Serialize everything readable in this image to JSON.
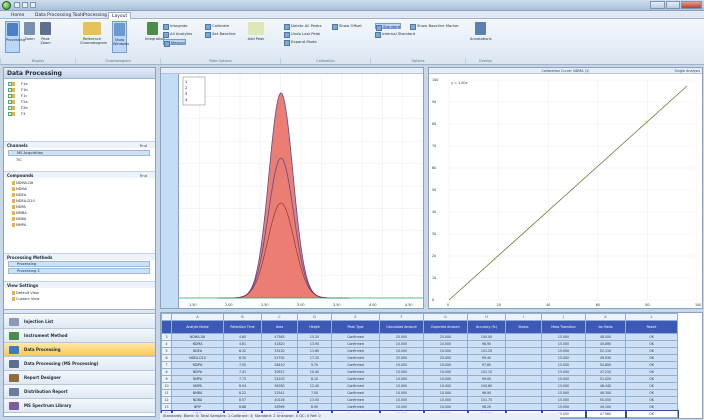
{
  "menu": {
    "tabs": [
      "Home",
      "Data Processing Tools",
      "Processing",
      "Layout"
    ],
    "active_index": 2
  },
  "ribbon": {
    "big_buttons": [
      "Processing",
      "Zoom",
      "Peak Zoom",
      "Reference Chromatogram",
      "Show Windows",
      "Integration"
    ],
    "small_buttons": [
      "Integrate",
      "All Analytes",
      "Manual",
      "Calibrate",
      "Set Baseline",
      "Add Peak",
      "Delete All Peaks",
      "Undo Last Peak",
      "Expand Mode",
      "Show Offset",
      "Standard",
      "Internal Standard",
      "Show Baseline Marker",
      "Annotations"
    ],
    "group_labels": [
      "Display",
      "Chromatogram",
      "Peak Options",
      "Calibration",
      "Options",
      "Overlay"
    ]
  },
  "nav": {
    "title": "Data Processing",
    "files": [
      "F1a",
      "F1b",
      "F1c",
      "F2a",
      "F2b",
      "F3"
    ],
    "sections": {
      "channels": {
        "label": "Channels",
        "tool": "Find",
        "items": [
          "MS Acquisition",
          "TIC"
        ]
      },
      "compounds": {
        "label": "Compounds",
        "tool": "Find",
        "items": [
          "NDMA-D6",
          "NDMA",
          "NDEA",
          "NDEA-D10",
          "NDPA",
          "NMBA",
          "NDBA",
          "NMPA"
        ]
      },
      "methods": {
        "label": "Processing Methods",
        "items": [
          "Processing",
          "Processing 2"
        ]
      },
      "viewsettings": {
        "label": "View Settings",
        "items": [
          "Default View",
          "Custom View"
        ]
      }
    },
    "buttons": [
      "Injection List",
      "Instrument Method",
      "Data Processing",
      "Data Processing (MS Processing)",
      "Report Designer",
      "Distribution Report",
      "MS Spectrum Library"
    ],
    "active_button": 2
  },
  "chromatogram": {
    "legend": [
      "1",
      "2",
      "3",
      "4"
    ],
    "x_ticks": [
      "1.50",
      "2.00",
      "2.50",
      "3.00",
      "3.50",
      "4.00",
      "4.50"
    ],
    "peak_color": "#e8665a"
  },
  "calibration": {
    "title": "Calibration Curve: NDMA (1)",
    "right_label": "Single Analysis",
    "equation": "y = 1.00x",
    "y_ticks": [
      "100",
      "90",
      "80",
      "70",
      "60",
      "50",
      "40",
      "30",
      "20",
      "10",
      "0"
    ],
    "x_ticks": [
      "0",
      "20",
      "40",
      "60",
      "80",
      "100"
    ],
    "line_color": "#6b7a3a"
  },
  "table": {
    "col_letters": [
      "",
      "A",
      "B",
      "C",
      "D",
      "E",
      "F",
      "G",
      "H",
      "I",
      "J",
      "K",
      "L"
    ],
    "headers": [
      "",
      "Analyte Name",
      "Retention Time",
      "Area",
      "Height",
      "Peak Type",
      "Calculated Amount",
      "Expected Amount",
      "Accuracy (%)",
      "Status",
      "Mass Transition",
      "Ion Ratio",
      "Result"
    ],
    "rows": [
      [
        "3",
        "NDMA-D6",
        "4.60",
        "47563",
        "15.20",
        "Confirmed",
        "25.000",
        "25.000",
        "100.00",
        "",
        "15.000",
        "48.000",
        "OK"
      ],
      [
        "4",
        "NDMA",
        "4.61",
        "41820",
        "13.90",
        "Confirmed",
        "10.000",
        "10.000",
        "98.90",
        "",
        "15.000",
        "45.890",
        "OK"
      ],
      [
        "5",
        "NDEA",
        "6.32",
        "33120",
        "11.60",
        "Confirmed",
        "10.000",
        "10.000",
        "101.20",
        "",
        "15.000",
        "52.110",
        "OK"
      ],
      [
        "6",
        "NDEA-D10",
        "6.30",
        "51702",
        "17.20",
        "Confirmed",
        "25.000",
        "25.000",
        "99.40",
        "",
        "15.000",
        "49.930",
        "OK"
      ],
      [
        "7",
        "NDIPA",
        "7.05",
        "28410",
        "9.70",
        "Confirmed",
        "10.000",
        "10.000",
        "97.80",
        "",
        "15.000",
        "50.800",
        "OK"
      ],
      [
        "8",
        "NEIPA",
        "7.41",
        "30912",
        "10.40",
        "Confirmed",
        "10.000",
        "10.000",
        "102.10",
        "",
        "15.000",
        "47.210",
        "OK"
      ],
      [
        "9",
        "NMPA",
        "7.73",
        "24103",
        "8.10",
        "Confirmed",
        "10.000",
        "10.000",
        "99.00",
        "",
        "15.000",
        "51.020",
        "OK"
      ],
      [
        "10",
        "NDPA",
        "8.04",
        "36780",
        "12.40",
        "Confirmed",
        "10.000",
        "10.000",
        "100.60",
        "",
        "15.000",
        "48.440",
        "OK"
      ],
      [
        "11",
        "NMBA",
        "8.22",
        "22541",
        "7.50",
        "Confirmed",
        "10.000",
        "10.000",
        "96.90",
        "",
        "15.000",
        "46.300",
        "OK"
      ],
      [
        "12",
        "NDBA",
        "8.57",
        "40126",
        "13.50",
        "Confirmed",
        "10.000",
        "10.000",
        "101.70",
        "",
        "15.000",
        "50.050",
        "OK"
      ],
      [
        "13",
        "NPIP",
        "8.88",
        "26399",
        "8.90",
        "Confirmed",
        "10.000",
        "10.000",
        "98.20",
        "",
        "15.000",
        "49.100",
        "OK"
      ],
      [
        "14",
        "NPYR",
        "9.10",
        "29874",
        "10.10",
        "Confirmed",
        "10.000",
        "10.000",
        "100.30",
        "",
        "15.000",
        "47.960",
        "OK"
      ]
    ],
    "selected_row": 11
  },
  "status": {
    "text": "Standards: Blank: 0; Total Samples: 1 Calibrant: 3; Standard: 2 Unknown: 0 QC: 0 Ref: 0"
  }
}
